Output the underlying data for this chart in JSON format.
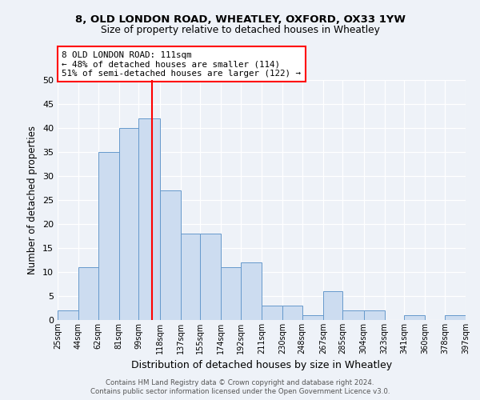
{
  "title1": "8, OLD LONDON ROAD, WHEATLEY, OXFORD, OX33 1YW",
  "title2": "Size of property relative to detached houses in Wheatley",
  "xlabel": "Distribution of detached houses by size in Wheatley",
  "ylabel": "Number of detached properties",
  "bin_labels": [
    "25sqm",
    "44sqm",
    "62sqm",
    "81sqm",
    "99sqm",
    "118sqm",
    "137sqm",
    "155sqm",
    "174sqm",
    "192sqm",
    "211sqm",
    "230sqm",
    "248sqm",
    "267sqm",
    "285sqm",
    "304sqm",
    "323sqm",
    "341sqm",
    "360sqm",
    "378sqm",
    "397sqm"
  ],
  "bin_edges": [
    25,
    44,
    62,
    81,
    99,
    118,
    137,
    155,
    174,
    192,
    211,
    230,
    248,
    267,
    285,
    304,
    323,
    341,
    360,
    378,
    397
  ],
  "counts": [
    2,
    11,
    35,
    40,
    42,
    27,
    18,
    18,
    11,
    12,
    3,
    3,
    1,
    6,
    2,
    2,
    0,
    1,
    0,
    1
  ],
  "bar_color": "#ccdcf0",
  "bar_edge_color": "#6699cc",
  "vline_x": 111,
  "vline_color": "red",
  "annotation_title": "8 OLD LONDON ROAD: 111sqm",
  "annotation_line1": "← 48% of detached houses are smaller (114)",
  "annotation_line2": "51% of semi-detached houses are larger (122) →",
  "annotation_box_color": "white",
  "annotation_box_edge": "red",
  "ylim": [
    0,
    50
  ],
  "yticks": [
    0,
    5,
    10,
    15,
    20,
    25,
    30,
    35,
    40,
    45,
    50
  ],
  "footnote1": "Contains HM Land Registry data © Crown copyright and database right 2024.",
  "footnote2": "Contains public sector information licensed under the Open Government Licence v3.0.",
  "bg_color": "#eef2f8"
}
